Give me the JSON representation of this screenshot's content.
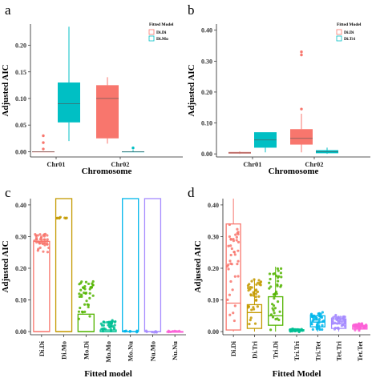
{
  "colors": {
    "series_a": "#F8766D",
    "series_b": "#00BFC4",
    "panel_c": [
      "#F8766D",
      "#C49A00",
      "#53B400",
      "#00C094",
      "#00B6EB",
      "#A58AFF",
      "#FB61D7"
    ],
    "panel_d": [
      "#F8766D",
      "#C49A00",
      "#53B400",
      "#00C094",
      "#00B6EB",
      "#A58AFF",
      "#FB61D7"
    ]
  },
  "chart_data": [
    {
      "panel": "a",
      "type": "box",
      "xlabel": "Chromosome",
      "ylabel": "Adjusted AIC",
      "ylim": [
        -0.01,
        0.24
      ],
      "yticks": [
        "0.00",
        "0.05",
        "0.10",
        "0.15",
        "0.20"
      ],
      "ytick_values": [
        0,
        0.05,
        0.1,
        0.15,
        0.2
      ],
      "categories": [
        "Chr01",
        "Chr02"
      ],
      "legend": {
        "title": "Fitted Model",
        "position": "top-right",
        "entries": [
          "Di.Di",
          "Di.Mo"
        ]
      },
      "series": [
        {
          "name": "Di.Di",
          "boxes": [
            {
              "category": "Chr01",
              "min": 0,
              "q1": 0,
              "median": 0,
              "q3": 0,
              "max": 0,
              "outliers": [
                0.005,
                0.017,
                0.03
              ]
            },
            {
              "category": "Chr02",
              "min": 0.015,
              "q1": 0.025,
              "median": 0.1,
              "q3": 0.125,
              "max": 0.14,
              "outliers": []
            }
          ]
        },
        {
          "name": "Di.Mo",
          "boxes": [
            {
              "category": "Chr01",
              "min": 0.02,
              "q1": 0.055,
              "median": 0.09,
              "q3": 0.13,
              "max": 0.235,
              "outliers": []
            },
            {
              "category": "Chr02",
              "min": 0,
              "q1": 0,
              "median": 0,
              "q3": 0,
              "max": 0.003,
              "outliers": [
                0.007
              ]
            }
          ]
        }
      ]
    },
    {
      "panel": "b",
      "type": "box",
      "xlabel": "Chromosome",
      "ylabel": "Adjusted AIC",
      "ylim": [
        -0.01,
        0.42
      ],
      "yticks": [
        "0.00",
        "0.10",
        "0.20",
        "0.30",
        "0.40"
      ],
      "ytick_values": [
        0,
        0.1,
        0.2,
        0.3,
        0.4
      ],
      "categories": [
        "Chr01",
        "Chr02"
      ],
      "legend": {
        "title": "Fitted Model",
        "position": "top-right",
        "entries": [
          "Di.Di",
          "Di.Tri"
        ]
      },
      "series": [
        {
          "name": "Di.Di",
          "boxes": [
            {
              "category": "Chr01",
              "min": 0,
              "q1": 0.001,
              "median": 0.003,
              "q3": 0.006,
              "max": 0.008,
              "outliers": []
            },
            {
              "category": "Chr02",
              "min": 0.005,
              "q1": 0.03,
              "median": 0.05,
              "q3": 0.08,
              "max": 0.13,
              "outliers": [
                0.145,
                0.32,
                0.33
              ]
            }
          ]
        },
        {
          "name": "Di.Tri",
          "boxes": [
            {
              "category": "Chr01",
              "min": 0.005,
              "q1": 0.02,
              "median": 0.045,
              "q3": 0.07,
              "max": 0.07,
              "outliers": []
            },
            {
              "category": "Chr02",
              "min": 0,
              "q1": 0.002,
              "median": 0.007,
              "q3": 0.012,
              "max": 0.02,
              "outliers": []
            }
          ]
        }
      ]
    },
    {
      "panel": "c",
      "type": "box",
      "xlabel": "Fitted model",
      "ylabel": "Adjusted AIC",
      "ylim": [
        -0.01,
        0.42
      ],
      "yticks": [
        "0.00",
        "0.10",
        "0.20",
        "0.30",
        "0.40"
      ],
      "ytick_values": [
        0,
        0.1,
        0.2,
        0.3,
        0.4
      ],
      "categories": [
        "Di.Di",
        "Di.Mo",
        "Mo.Di",
        "Mo.Mo",
        "Mo.Nu",
        "Nu.Mo",
        "Nu.Nu"
      ],
      "boxes": [
        {
          "category": "Di.Di",
          "min": 0,
          "q1": 0,
          "median": 0,
          "q3": 0.285,
          "max": 0.285,
          "cluster": [
            0.25,
            0.31
          ]
        },
        {
          "category": "Di.Mo",
          "min": 0,
          "q1": 0,
          "median": 0,
          "q3": 0.42,
          "max": 0.42,
          "cluster": [
            0.36,
            0.36
          ]
        },
        {
          "category": "Mo.Di",
          "min": 0,
          "q1": 0,
          "median": 0,
          "q3": 0.055,
          "max": 0.055,
          "cluster": [
            0.035,
            0.16
          ]
        },
        {
          "category": "Mo.Mo",
          "min": 0,
          "q1": 0,
          "median": 0,
          "q3": 0.005,
          "max": 0.005,
          "cluster": [
            0.0,
            0.035
          ]
        },
        {
          "category": "Mo.Nu",
          "min": 0,
          "q1": 0,
          "median": 0,
          "q3": 0.42,
          "max": 0.42,
          "cluster": [
            0,
            0
          ]
        },
        {
          "category": "Nu.Mo",
          "min": 0,
          "q1": 0,
          "median": 0,
          "q3": 0.42,
          "max": 0.42,
          "cluster": [
            0,
            0
          ]
        },
        {
          "category": "Nu.Nu",
          "min": 0,
          "q1": 0,
          "median": 0,
          "q3": 0,
          "max": 0,
          "cluster": [
            0,
            0
          ]
        }
      ]
    },
    {
      "panel": "d",
      "type": "box",
      "xlabel": "Fitted Model",
      "ylabel": "Adjusted AIC",
      "ylim": [
        -0.01,
        0.42
      ],
      "yticks": [
        "0.00",
        "0.10",
        "0.20",
        "0.30",
        "0.40"
      ],
      "ytick_values": [
        0,
        0.1,
        0.2,
        0.3,
        0.4
      ],
      "categories": [
        "Di.Di",
        "Di.Tri",
        "Tri.Di",
        "Tri.Tri",
        "Tri.Tet",
        "Tet.Tri",
        "Tet.Tet"
      ],
      "boxes": [
        {
          "category": "Di.Di",
          "min": 0,
          "q1": 0.005,
          "median": 0.09,
          "q3": 0.34,
          "max": 0.42,
          "cluster": [
            0,
            0.34
          ]
        },
        {
          "category": "Di.Tri",
          "min": 0,
          "q1": 0.01,
          "median": 0.06,
          "q3": 0.085,
          "max": 0.165,
          "cluster": [
            0,
            0.165
          ]
        },
        {
          "category": "Tri.Di",
          "min": 0,
          "q1": 0.02,
          "median": 0.05,
          "q3": 0.11,
          "max": 0.205,
          "cluster": [
            0,
            0.205
          ]
        },
        {
          "category": "Tri.Tri",
          "min": 0,
          "q1": 0.002,
          "median": 0.004,
          "q3": 0.006,
          "max": 0.008,
          "cluster": [
            0,
            0.008
          ]
        },
        {
          "category": "Tri.Tet",
          "min": 0,
          "q1": 0.015,
          "median": 0.03,
          "q3": 0.05,
          "max": 0.06,
          "cluster": [
            0,
            0.06
          ]
        },
        {
          "category": "Tet.Tri",
          "min": 0,
          "q1": 0.01,
          "median": 0.025,
          "q3": 0.04,
          "max": 0.05,
          "cluster": [
            0,
            0.05
          ]
        },
        {
          "category": "Tet.Tet",
          "min": 0,
          "q1": 0.008,
          "median": 0.015,
          "q3": 0.02,
          "max": 0.025,
          "cluster": [
            0.005,
            0.025
          ]
        }
      ]
    }
  ]
}
